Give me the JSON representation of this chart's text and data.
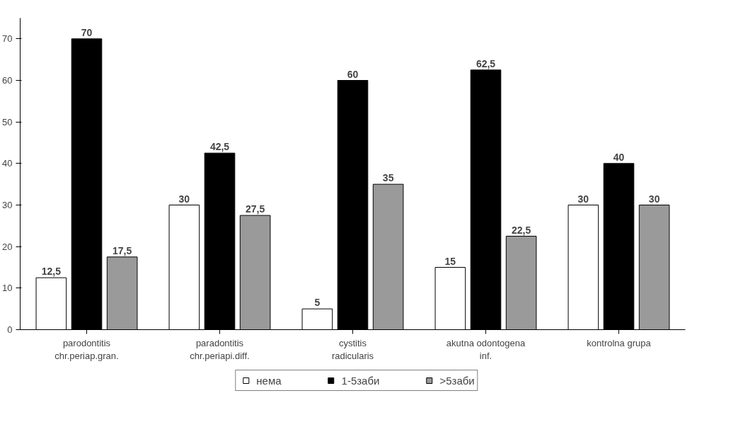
{
  "chart_data": {
    "type": "bar",
    "categories": [
      "parodontitis chr.periap.gran.",
      "paradontitis chr.periapi.diff.",
      "cystitis radicularis",
      "akutna odontogena inf.",
      "kontrolna grupa"
    ],
    "series": [
      {
        "name": "нема",
        "color": "#ffffff",
        "values": [
          12.5,
          30,
          5,
          15,
          30
        ],
        "value_labels": [
          "12,5",
          "30",
          "5",
          "15",
          "30"
        ]
      },
      {
        "name": "1-5заби",
        "color": "#000000",
        "values": [
          70,
          42.5,
          60,
          62.5,
          40
        ],
        "value_labels": [
          "70",
          "42,5",
          "60",
          "62,5",
          "40"
        ]
      },
      {
        "name": ">5заби",
        "color": "#9a9a9a",
        "values": [
          17.5,
          27.5,
          35,
          22.5,
          30
        ],
        "value_labels": [
          "17,5",
          "27,5",
          "35",
          "22,5",
          "30"
        ]
      }
    ],
    "ylim": [
      0,
      75
    ],
    "yticks": [
      0,
      10,
      20,
      30,
      40,
      50,
      60,
      70
    ],
    "grid": false,
    "legend": "bottom"
  }
}
